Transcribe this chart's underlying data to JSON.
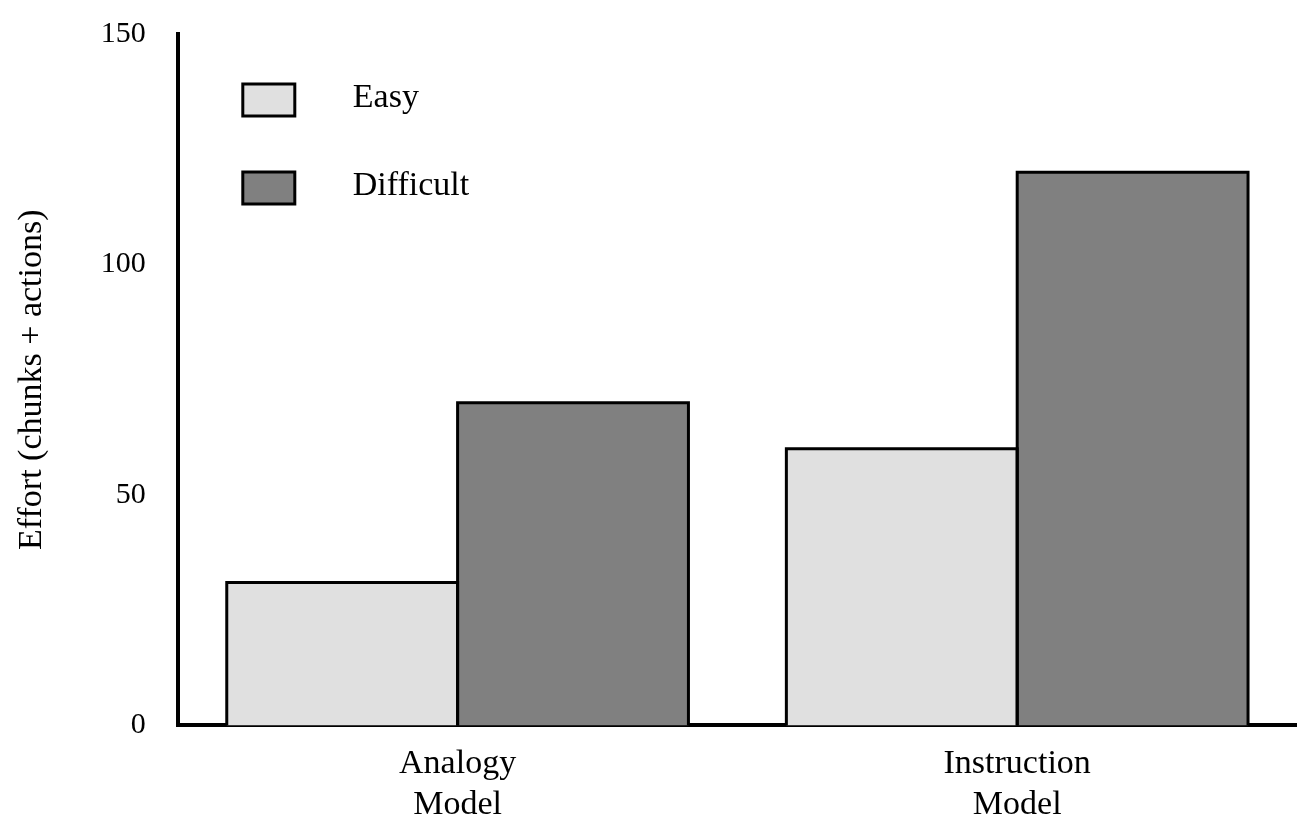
{
  "chart_data": {
    "type": "bar",
    "ylabel": "Effort (chunks + actions)",
    "categories": [
      "Analogy Model",
      "Instruction Model"
    ],
    "series": [
      {
        "name": "Easy",
        "color": "#e0e0e0",
        "values": [
          31,
          60
        ]
      },
      {
        "name": "Difficult",
        "color": "#808080",
        "values": [
          70,
          120
        ]
      }
    ],
    "ylim": [
      0,
      150
    ],
    "yticks": [
      0,
      50,
      100,
      150
    ],
    "grid": false,
    "legend": "top left"
  }
}
